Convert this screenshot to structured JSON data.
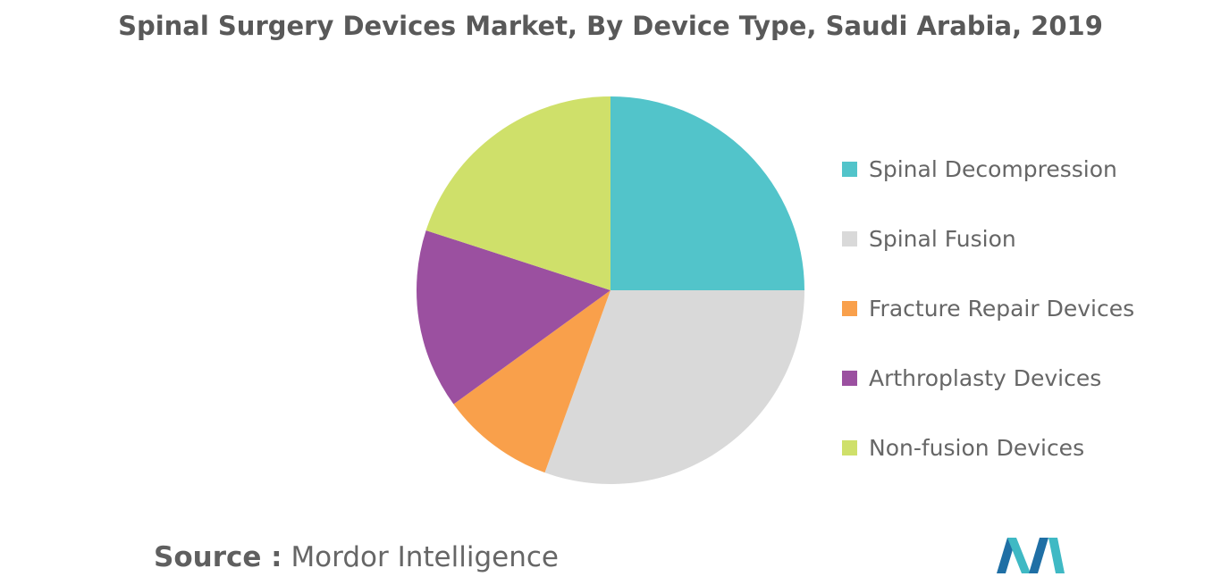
{
  "chart_data": {
    "type": "pie",
    "title": "Spinal Surgery Devices Market, By Device Type, Saudi Arabia, 2019",
    "categories": [
      "Spinal Decompression",
      "Spinal Fusion",
      "Fracture Repair Devices",
      "Arthroplasty Devices",
      "Non-fusion Devices"
    ],
    "values": [
      25,
      30.5,
      9.5,
      15,
      20
    ],
    "unit": "%",
    "colors": [
      "#52c4ca",
      "#d9d9d9",
      "#f9a04b",
      "#9b50a0",
      "#cfe06a"
    ],
    "start_angle": "12 o'clock",
    "direction": "clockwise",
    "legend_position": "right"
  },
  "source": {
    "prefix": "Source :",
    "name": "Mordor Intelligence"
  },
  "logo": {
    "icon": "mordor-intelligence-logo-icon",
    "colors": [
      "#1f6fa5",
      "#3fb9c4"
    ]
  }
}
